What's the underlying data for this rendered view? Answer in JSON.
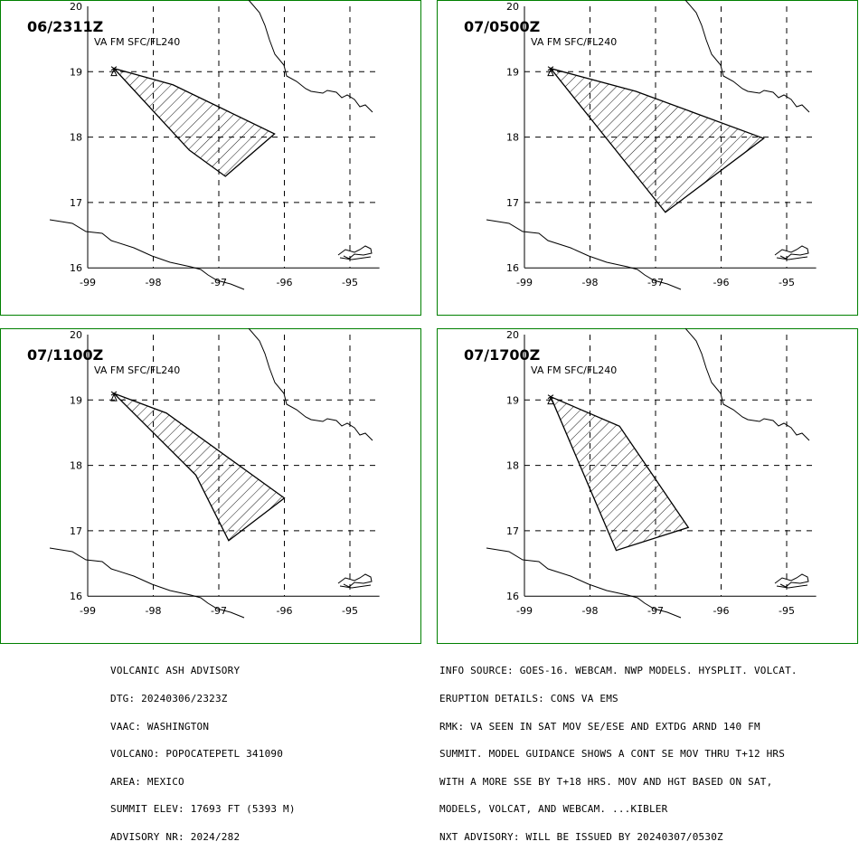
{
  "panels": [
    {
      "time": "06/2311Z",
      "layer": "VA FM SFC/FL240",
      "ash_polygon": [
        [
          -98.6,
          19.05
        ],
        [
          -97.7,
          18.8
        ],
        [
          -96.15,
          18.05
        ],
        [
          -96.9,
          17.4
        ],
        [
          -97.45,
          17.8
        ]
      ]
    },
    {
      "time": "07/0500Z",
      "layer": "VA FM SFC/FL240",
      "ash_polygon": [
        [
          -98.6,
          19.05
        ],
        [
          -97.3,
          18.7
        ],
        [
          -95.35,
          17.98
        ],
        [
          -96.85,
          16.85
        ]
      ]
    },
    {
      "time": "07/1100Z",
      "layer": "VA FM SFC/FL240",
      "ash_polygon": [
        [
          -98.6,
          19.1
        ],
        [
          -97.8,
          18.8
        ],
        [
          -96.0,
          17.5
        ],
        [
          -96.85,
          16.85
        ],
        [
          -97.35,
          17.85
        ]
      ]
    },
    {
      "time": "07/1700Z",
      "layer": "VA FM SFC/FL240",
      "ash_polygon": [
        [
          -98.6,
          19.05
        ],
        [
          -97.55,
          18.6
        ],
        [
          -96.5,
          17.05
        ],
        [
          -97.6,
          16.7
        ]
      ]
    }
  ],
  "map": {
    "lat_ticks": [
      "20",
      "19",
      "18",
      "17",
      "16"
    ],
    "lon_ticks": [
      "-99",
      "-98",
      "-97",
      "-96",
      "-95"
    ],
    "volcano_icon": "volcano-triangle-icon",
    "frame_color": "#008000",
    "ash_color": "#000000"
  },
  "advisory_left": [
    "VOLCANIC ASH ADVISORY",
    "DTG: 20240306/2323Z",
    "VAAC: WASHINGTON",
    "VOLCANO: POPOCATEPETL 341090",
    "AREA: MEXICO",
    "SUMMIT ELEV: 17693 FT (5393 M)",
    "ADVISORY NR: 2024/282"
  ],
  "advisory_right": [
    "INFO SOURCE: GOES-16. WEBCAM. NWP MODELS. HYSPLIT. VOLCAT.",
    "ERUPTION DETAILS: CONS VA EMS",
    "RMK: VA SEEN IN SAT MOV SE/ESE AND EXTDG ARND 140 FM",
    "SUMMIT. MODEL GUIDANCE SHOWS A CONT SE MOV THRU T+12 HRS",
    "WITH A MORE SSE BY T+18 HRS. MOV AND HGT BASED ON SAT,",
    "MODELS, VOLCAT, AND WEBCAM. ...KIBLER",
    "NXT ADVISORY: WILL BE ISSUED BY 20240307/0530Z"
  ]
}
